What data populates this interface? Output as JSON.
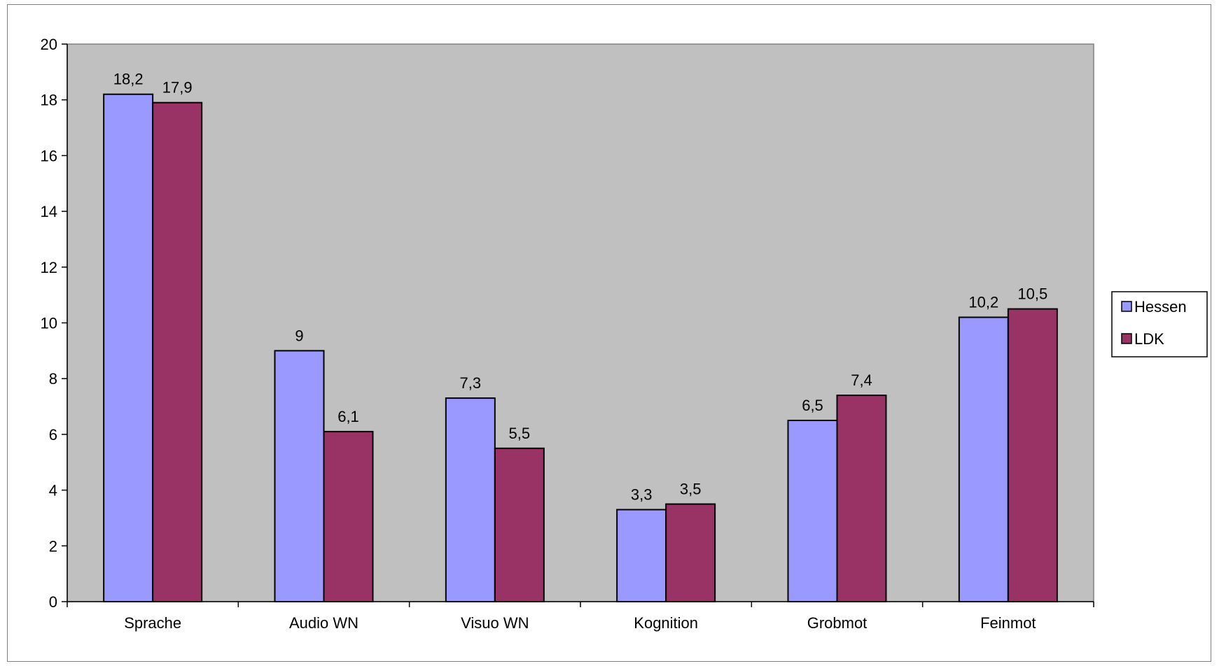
{
  "chart_data": {
    "type": "bar",
    "title": "",
    "xlabel": "",
    "ylabel": "",
    "categories": [
      "Sprache",
      "Audio WN",
      "Visuo WN",
      "Kognition",
      "Grobmot",
      "Feinmot"
    ],
    "series": [
      {
        "name": "Hessen",
        "color": "#9999ff",
        "values": [
          18.2,
          9,
          7.3,
          3.3,
          6.5,
          10.2
        ],
        "labels": [
          "18,2",
          "9",
          "7,3",
          "3,3",
          "6,5",
          "10,2"
        ]
      },
      {
        "name": "LDK",
        "color": "#993366",
        "values": [
          17.9,
          6.1,
          5.5,
          3.5,
          7.4,
          10.5
        ],
        "labels": [
          "17,9",
          "6,1",
          "5,5",
          "3,5",
          "7,4",
          "10,5"
        ]
      }
    ],
    "ylim": [
      0,
      20
    ],
    "yticks": [
      0,
      2,
      4,
      6,
      8,
      10,
      12,
      14,
      16,
      18,
      20
    ],
    "plot_background": "#c0c0c0",
    "grid": false,
    "legend_position": "right"
  }
}
